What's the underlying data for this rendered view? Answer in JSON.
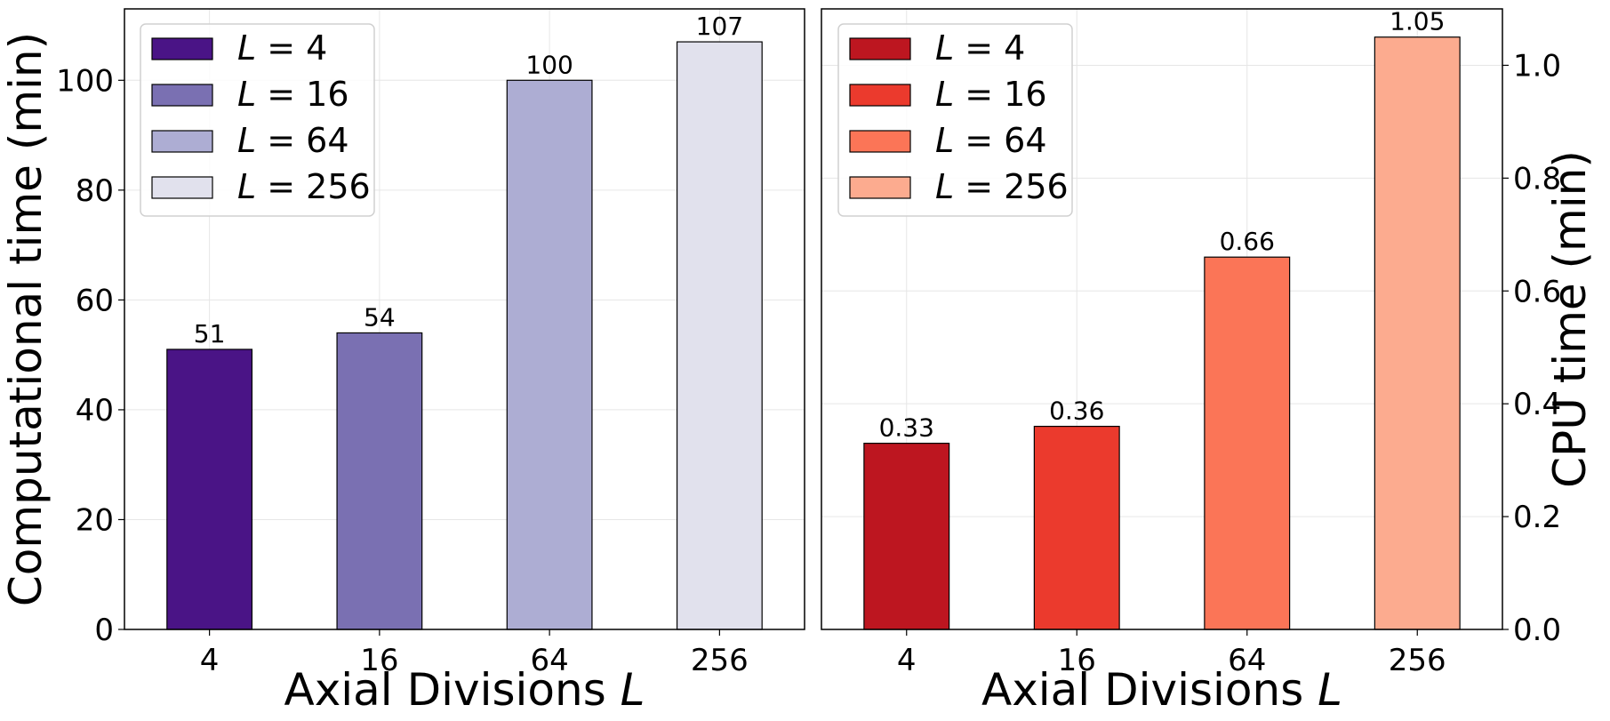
{
  "chart_data": [
    {
      "type": "bar",
      "categories": [
        "4",
        "16",
        "64",
        "256"
      ],
      "values": [
        51,
        54,
        100,
        107
      ],
      "bar_labels": [
        "51",
        "54",
        "100",
        "107"
      ],
      "xlabel": "Axial Divisions L",
      "ylabel": "Computational time (min)",
      "ylim": [
        0,
        113
      ],
      "yticks": [
        0,
        20,
        40,
        60,
        80,
        100
      ],
      "ytick_labels": [
        "0",
        "20",
        "40",
        "60",
        "80",
        "100"
      ],
      "y_axis_side": "left",
      "grid": true,
      "legend_placement": "top-left",
      "legend": [
        "L = 4",
        "L = 16",
        "L = 64",
        "L = 256"
      ],
      "colors": [
        "#4a1486",
        "#7a70b2",
        "#adadd3",
        "#e1e1ed"
      ]
    },
    {
      "type": "bar",
      "categories": [
        "4",
        "16",
        "64",
        "256"
      ],
      "values": [
        0.33,
        0.36,
        0.66,
        1.05
      ],
      "bar_labels": [
        "0.33",
        "0.36",
        "0.66",
        "1.05"
      ],
      "xlabel": "Axial Divisions L",
      "ylabel": "CPU time (min)",
      "ylim": [
        0,
        1.1
      ],
      "yticks": [
        0,
        0.2,
        0.4,
        0.6,
        0.8,
        1.0
      ],
      "ytick_labels": [
        "0.0",
        "0.2",
        "0.4",
        "0.6",
        "0.8",
        "1.0"
      ],
      "y_axis_side": "right",
      "grid": true,
      "legend_placement": "top-left",
      "legend": [
        "L = 4",
        "L = 16",
        "L = 64",
        "L = 256"
      ],
      "colors": [
        "#bd1620",
        "#eb3a2d",
        "#fb7557",
        "#fcab8f"
      ]
    }
  ]
}
